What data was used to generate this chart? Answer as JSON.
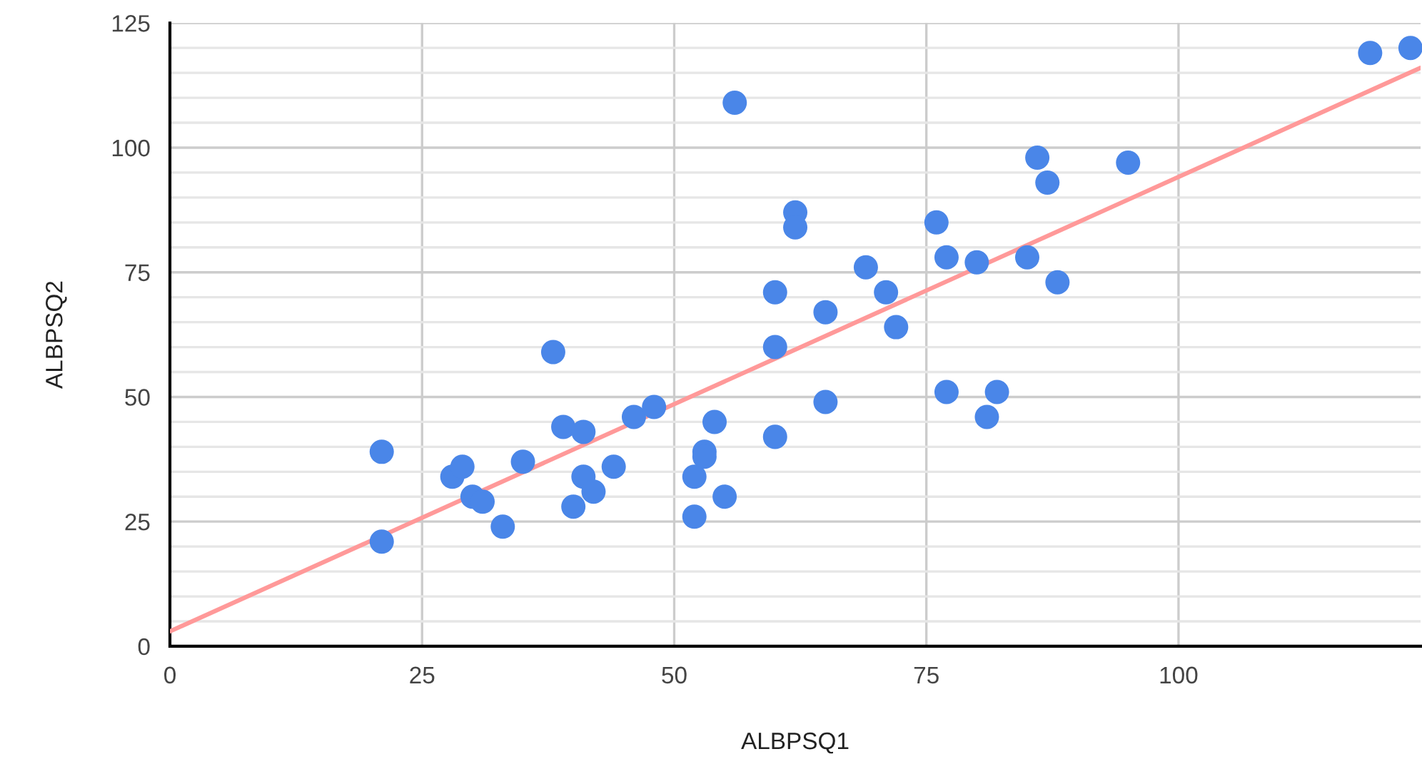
{
  "chart_data": {
    "type": "scatter",
    "xlabel": "ALBPSQ1",
    "ylabel": "ALBPSQ2",
    "xlim": [
      0,
      124
    ],
    "xticks": [
      0,
      25,
      50,
      75,
      100
    ],
    "ylim": [
      0,
      125
    ],
    "yticks": [
      0,
      {
        "value": 5,
        "label": null
      },
      {
        "value": 10,
        "label": null
      },
      {
        "value": 15,
        "label": null
      },
      {
        "value": 20,
        "label": null
      },
      25,
      {
        "value": 30,
        "label": null
      },
      {
        "value": 35,
        "label": null
      },
      {
        "value": 40,
        "label": null
      },
      {
        "value": 45,
        "label": null
      },
      50,
      {
        "value": 55,
        "label": null
      },
      {
        "value": 60,
        "label": null
      },
      {
        "value": 65,
        "label": null
      },
      {
        "value": 70,
        "label": null
      },
      75,
      {
        "value": 80,
        "label": null
      },
      {
        "value": 85,
        "label": null
      },
      {
        "value": 90,
        "label": null
      },
      {
        "value": 95,
        "label": null
      },
      100,
      {
        "value": 105,
        "label": null
      },
      {
        "value": 110,
        "label": null
      },
      {
        "value": 115,
        "label": null
      },
      {
        "value": 120,
        "label": null
      },
      125
    ],
    "grid": true,
    "legend": false,
    "series": [
      {
        "marker": "circle",
        "color": "#4a86e8",
        "x": [
          21,
          21,
          28,
          29,
          30,
          31,
          33,
          35,
          38,
          39,
          40,
          41,
          41,
          42,
          44,
          46,
          48,
          52,
          52,
          53,
          53,
          54,
          55,
          56,
          60,
          60,
          60,
          62,
          62,
          65,
          65,
          69,
          71,
          72,
          76,
          77,
          77,
          80,
          81,
          82,
          85,
          86,
          87,
          88,
          95,
          119,
          123
        ],
        "values": [
          39,
          21,
          34,
          36,
          30,
          29,
          24,
          37,
          59,
          44,
          28,
          43,
          34,
          31,
          36,
          46,
          48,
          34,
          26,
          39,
          38,
          45,
          30,
          109,
          71,
          60,
          42,
          87,
          84,
          67,
          49,
          76,
          71,
          64,
          85,
          78,
          51,
          77,
          46,
          51,
          78,
          98,
          93,
          73,
          97,
          119,
          120
        ]
      },
      {
        "type": "line",
        "color": "#ff9999",
        "x": [
          0,
          124
        ],
        "values": [
          3,
          116
        ]
      }
    ]
  }
}
